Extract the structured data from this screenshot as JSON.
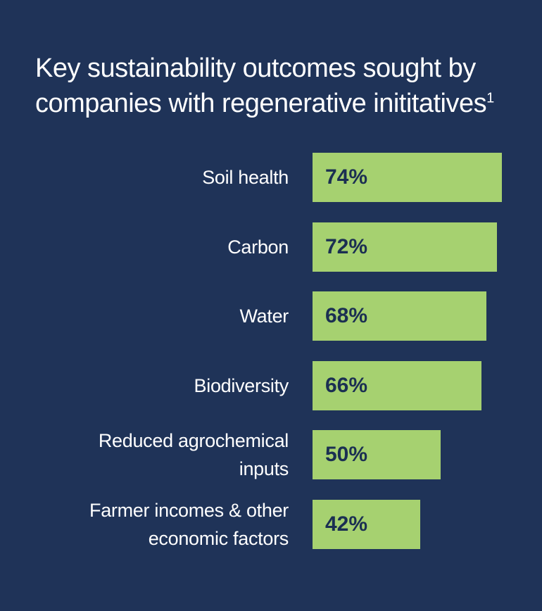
{
  "title": "Key sustainability outcomes sought by companies with regenerative inititatives",
  "title_footnote": "1",
  "colors": {
    "background": "#1f3358",
    "bar": "#a6d170",
    "bar_text": "#1b2f52",
    "label_text": "#ffffff"
  },
  "chart_data": {
    "type": "bar",
    "orientation": "horizontal",
    "categories": [
      "Soil health",
      "Carbon",
      "Water",
      "Biodiversity",
      "Reduced agrochemical inputs",
      "Farmer incomes & other economic factors"
    ],
    "values": [
      74,
      72,
      68,
      66,
      50,
      42
    ],
    "data_labels": [
      "74%",
      "72%",
      "68%",
      "66%",
      "50%",
      "42%"
    ],
    "xlim": [
      0,
      100
    ],
    "grid": false,
    "legend": "none"
  }
}
